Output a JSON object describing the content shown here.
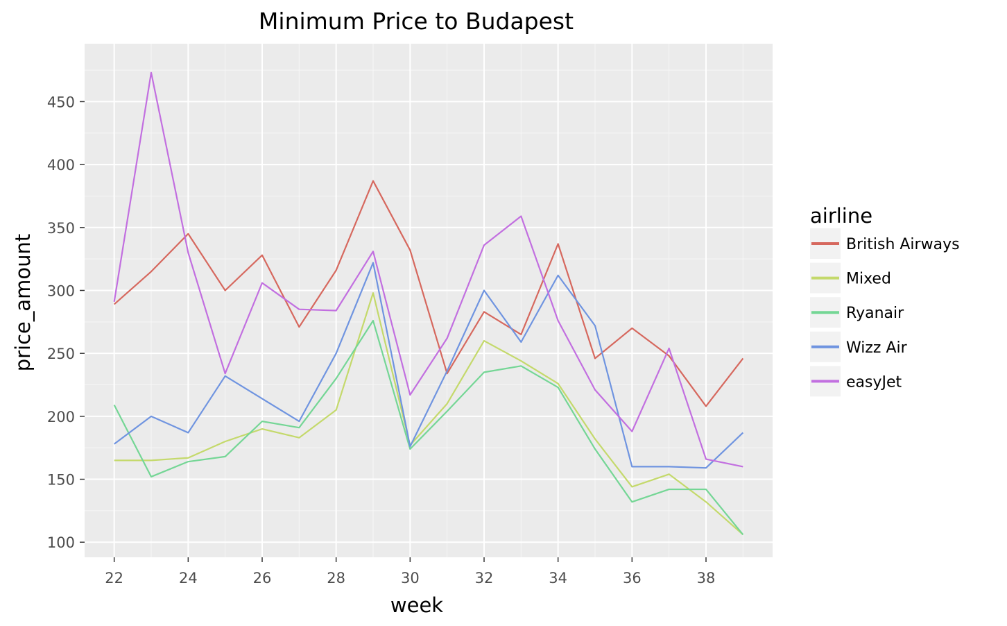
{
  "chart_data": {
    "type": "line",
    "title": "Minimum Price to Budapest",
    "xlabel": "week",
    "ylabel": "price_amount",
    "xlim": [
      21.2,
      39.8
    ],
    "ylim": [
      88,
      496
    ],
    "x_ticks": [
      22,
      24,
      26,
      28,
      30,
      32,
      34,
      36,
      38
    ],
    "y_ticks": [
      100,
      150,
      200,
      250,
      300,
      350,
      400,
      450
    ],
    "x_tick_labels": [
      "22",
      "24",
      "26",
      "28",
      "30",
      "32",
      "34",
      "36",
      "38"
    ],
    "y_tick_labels": [
      "100",
      "150",
      "200",
      "250",
      "300",
      "350",
      "400",
      "450"
    ],
    "grid": true,
    "legend": {
      "title": "airline",
      "position": "right"
    },
    "x": [
      22,
      23,
      24,
      25,
      26,
      27,
      28,
      29,
      30,
      31,
      32,
      33,
      34,
      35,
      36,
      37,
      38,
      39
    ],
    "series": [
      {
        "name": "British Airways",
        "color": "#d6685e",
        "values": [
          289,
          315,
          345,
          300,
          328,
          271,
          316,
          387,
          332,
          234,
          283,
          265,
          337,
          246,
          270,
          248,
          208,
          246
        ]
      },
      {
        "name": "Mixed",
        "color": "#c4d96b",
        "values": [
          165,
          165,
          167,
          180,
          190,
          183,
          205,
          298,
          177,
          210,
          260,
          244,
          226,
          182,
          144,
          154,
          132,
          106
        ]
      },
      {
        "name": "Ryanair",
        "color": "#74d695",
        "values": [
          209,
          152,
          164,
          168,
          196,
          191,
          230,
          276,
          174,
          204,
          235,
          240,
          223,
          174,
          132,
          142,
          142,
          106
        ]
      },
      {
        "name": "Wizz Air",
        "color": "#6f94e0",
        "values": [
          178,
          200,
          187,
          232,
          214,
          196,
          250,
          322,
          176,
          236,
          300,
          259,
          312,
          272,
          160,
          160,
          159,
          187
        ]
      },
      {
        "name": "easyJet",
        "color": "#c26fe0",
        "values": [
          291,
          473,
          330,
          234,
          306,
          285,
          284,
          331,
          217,
          262,
          336,
          359,
          276,
          221,
          188,
          254,
          166,
          160
        ]
      }
    ]
  }
}
